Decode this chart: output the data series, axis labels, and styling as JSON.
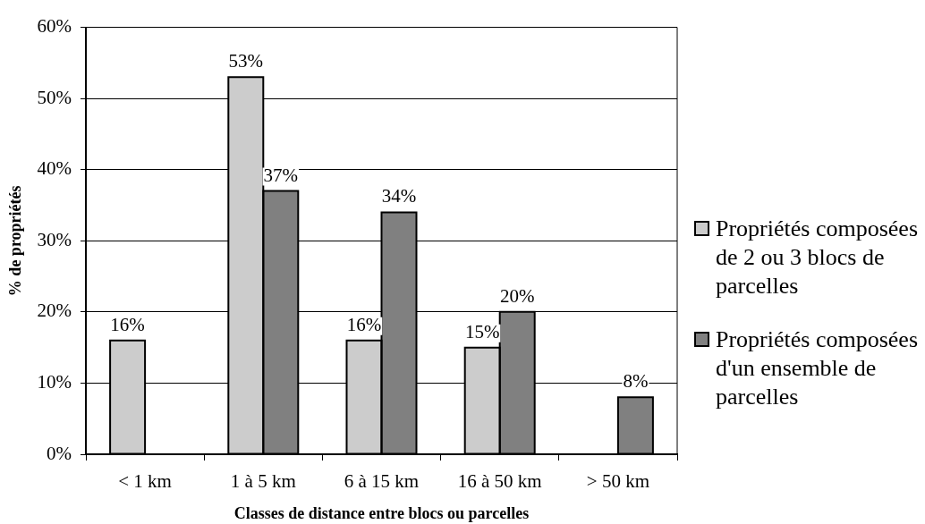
{
  "chart_data": {
    "type": "bar",
    "xlabel": "Classes de distance entre blocs ou parcelles",
    "ylabel": "% de propriétés",
    "categories": [
      "< 1 km",
      "1 à 5 km",
      "6 à 15 km",
      "16 à 50 km",
      "> 50 km"
    ],
    "series": [
      {
        "name": "Propriétés composées de 2 ou 3 blocs de parcelles",
        "color": "#cccccc",
        "values": [
          16,
          53,
          16,
          15,
          null
        ],
        "value_labels": [
          "16%",
          "53%",
          "16%",
          "15%",
          null
        ]
      },
      {
        "name": "Propriétés composées d'un ensemble de parcelles",
        "color": "#808080",
        "values": [
          null,
          37,
          34,
          20,
          8
        ],
        "value_labels": [
          null,
          "37%",
          "34%",
          "20%",
          "8%"
        ]
      }
    ],
    "ylim": [
      0,
      60
    ],
    "yticks": [
      {
        "value": 0,
        "label": "0%"
      },
      {
        "value": 10,
        "label": "10%"
      },
      {
        "value": 20,
        "label": "20%"
      },
      {
        "value": 30,
        "label": "30%"
      },
      {
        "value": 40,
        "label": "40%"
      },
      {
        "value": 50,
        "label": "50%"
      },
      {
        "value": 60,
        "label": "60%"
      }
    ],
    "grid": "y",
    "legend": "right"
  }
}
